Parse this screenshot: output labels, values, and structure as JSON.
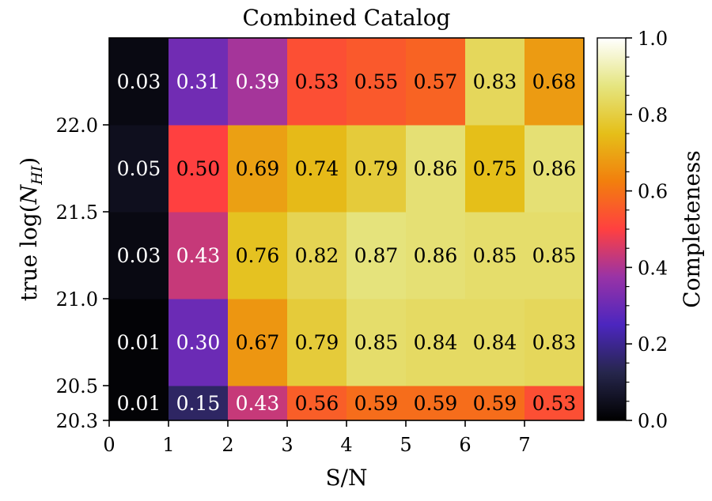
{
  "chart_data": {
    "type": "heatmap",
    "title": "Combined Catalog",
    "xlabel": "S/N",
    "ylabel_prefix": "true log(",
    "ylabel_var": "N",
    "ylabel_sub": "HI",
    "ylabel_suffix": ")",
    "x_edges": [
      0,
      1,
      2,
      3,
      4,
      5,
      6,
      7,
      8
    ],
    "x_ticks": [
      0,
      1,
      2,
      3,
      4,
      5,
      6,
      7
    ],
    "x_tick_labels": [
      "0",
      "1",
      "2",
      "3",
      "4",
      "5",
      "6",
      "7"
    ],
    "y_edges": [
      20.3,
      20.5,
      21.0,
      21.5,
      22.0,
      22.5
    ],
    "y_ticks": [
      20.3,
      20.5,
      21.0,
      21.5,
      22.0
    ],
    "y_tick_labels": [
      "20.3",
      "20.5",
      "21.0",
      "21.5",
      "22.0"
    ],
    "values": [
      [
        0.01,
        0.15,
        0.43,
        0.56,
        0.59,
        0.59,
        0.59,
        0.53
      ],
      [
        0.01,
        0.3,
        0.67,
        0.79,
        0.85,
        0.84,
        0.84,
        0.83
      ],
      [
        0.03,
        0.43,
        0.76,
        0.82,
        0.87,
        0.86,
        0.85,
        0.85
      ],
      [
        0.05,
        0.5,
        0.69,
        0.74,
        0.79,
        0.86,
        0.75,
        0.86
      ],
      [
        0.03,
        0.31,
        0.39,
        0.53,
        0.55,
        0.57,
        0.83,
        0.68
      ]
    ],
    "colormap": "CMRmap",
    "colorbar": {
      "label": "Completeness",
      "range": [
        0.0,
        1.0
      ],
      "ticks": [
        0.0,
        0.2,
        0.4,
        0.6,
        0.8,
        1.0
      ],
      "tick_labels": [
        "0.0",
        "0.2",
        "0.4",
        "0.6",
        "0.8",
        "1.0"
      ]
    },
    "grid": false,
    "colors": {
      "label_dark": "#000000",
      "label_light": "#ffffff",
      "axis": "#000000"
    }
  }
}
